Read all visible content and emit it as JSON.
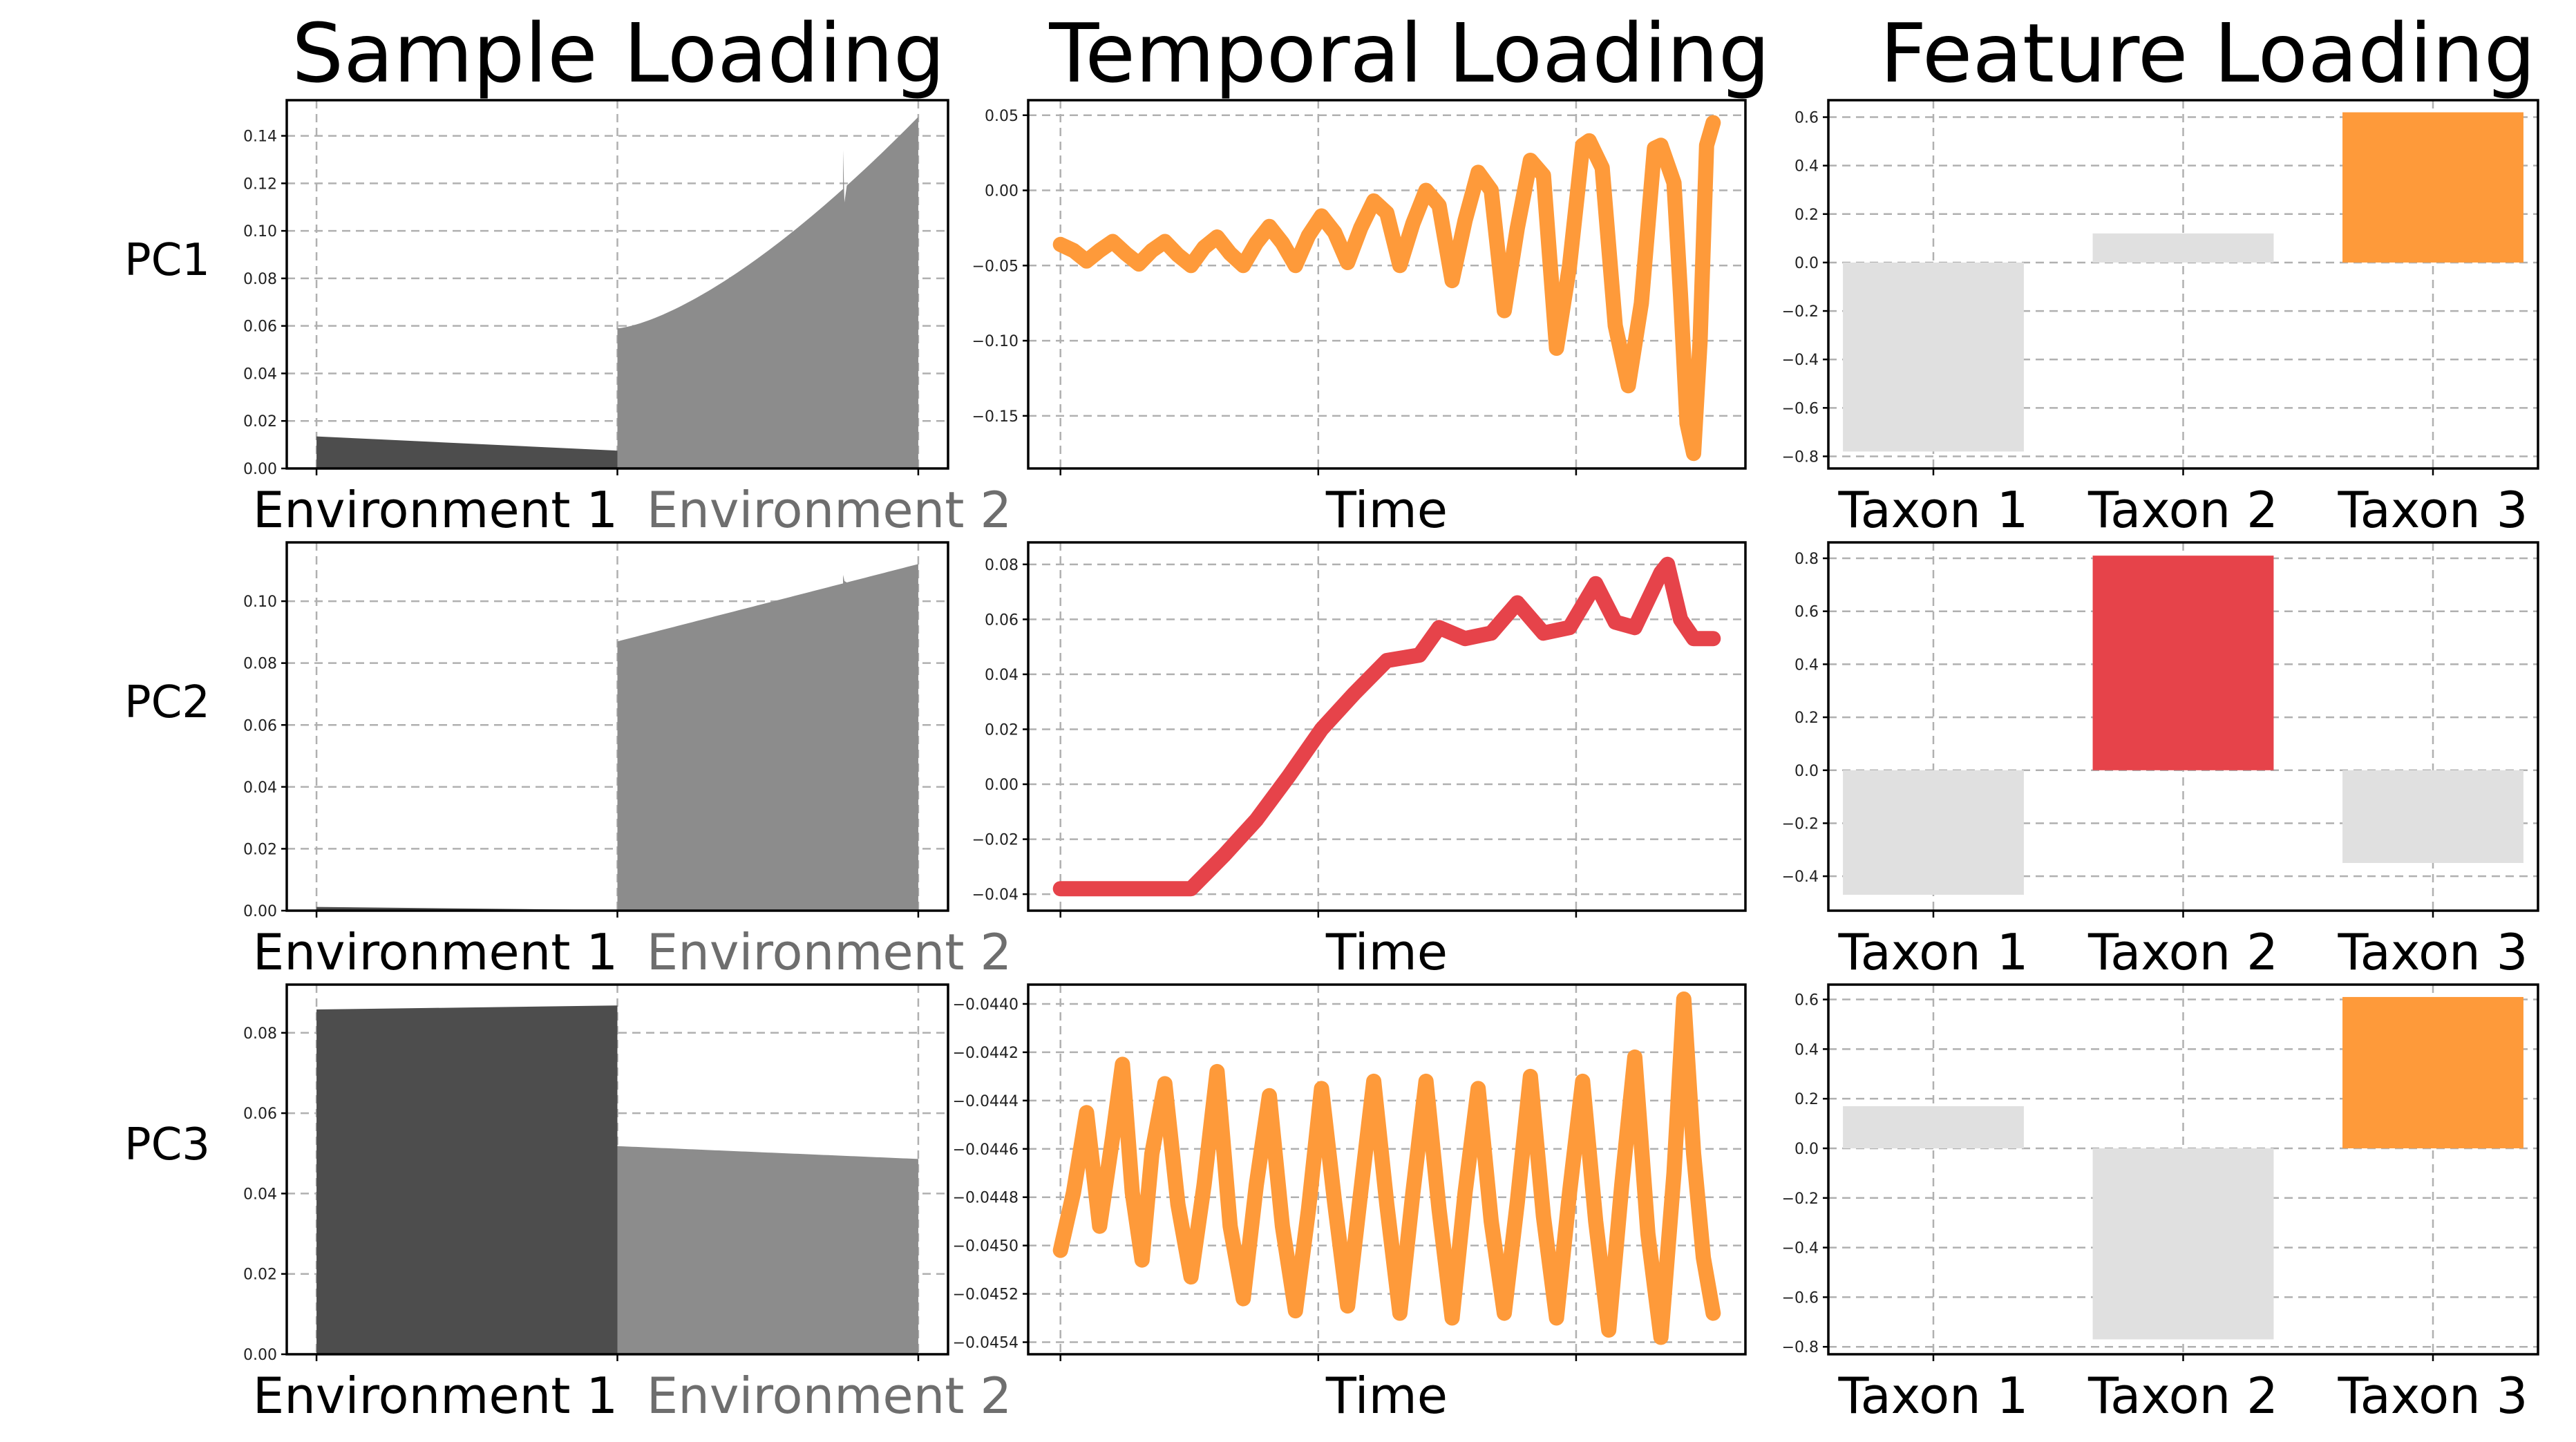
{
  "titles": {
    "sample": "Sample Loading",
    "temporal": "Temporal Loading",
    "feature": "Feature Loading"
  },
  "row_labels": [
    "PC1",
    "PC2",
    "PC3"
  ],
  "colors": {
    "env1": "#4d4d4d",
    "env2": "#8c8c8c",
    "env2_label": "#6e6e6e",
    "orange": "#fe9a3a",
    "red": "#e6434a",
    "gray_bar": "#e0e0e0"
  },
  "chart_data": [
    {
      "id": "pc1-sample",
      "type": "bar",
      "row": 0,
      "col": 0,
      "categories": [
        "Environment 1",
        "Environment 2"
      ],
      "yticks": [
        "0.00",
        "0.02",
        "0.04",
        "0.06",
        "0.08",
        "0.10",
        "0.12",
        "0.14"
      ],
      "ylim": [
        0,
        0.155
      ],
      "env1": {
        "start": 0.0135,
        "end": 0.0075
      },
      "env2": {
        "start": 0.059,
        "end": 0.148,
        "shape": "convex",
        "notch_at": 0.75,
        "notch_peak": 0.134,
        "notch_drop": 0.112
      }
    },
    {
      "id": "pc1-temporal",
      "type": "line",
      "row": 0,
      "col": 1,
      "xlabel": "Time",
      "yticks": [
        "0.05",
        "0.00",
        "−0.05",
        "−0.10",
        "−0.15"
      ],
      "ylim": [
        -0.185,
        0.06
      ],
      "color": "orange",
      "points": [
        [
          0,
          -0.036
        ],
        [
          0.02,
          -0.04
        ],
        [
          0.04,
          -0.047
        ],
        [
          0.06,
          -0.04
        ],
        [
          0.08,
          -0.034
        ],
        [
          0.1,
          -0.042
        ],
        [
          0.12,
          -0.049
        ],
        [
          0.14,
          -0.04
        ],
        [
          0.16,
          -0.034
        ],
        [
          0.18,
          -0.043
        ],
        [
          0.2,
          -0.05
        ],
        [
          0.22,
          -0.038
        ],
        [
          0.24,
          -0.031
        ],
        [
          0.26,
          -0.042
        ],
        [
          0.28,
          -0.05
        ],
        [
          0.3,
          -0.035
        ],
        [
          0.32,
          -0.024
        ],
        [
          0.34,
          -0.035
        ],
        [
          0.36,
          -0.05
        ],
        [
          0.38,
          -0.03
        ],
        [
          0.4,
          -0.017
        ],
        [
          0.42,
          -0.028
        ],
        [
          0.44,
          -0.048
        ],
        [
          0.46,
          -0.025
        ],
        [
          0.48,
          -0.007
        ],
        [
          0.5,
          -0.015
        ],
        [
          0.52,
          -0.05
        ],
        [
          0.54,
          -0.022
        ],
        [
          0.56,
          -0.0
        ],
        [
          0.58,
          -0.01
        ],
        [
          0.6,
          -0.06
        ],
        [
          0.62,
          -0.02
        ],
        [
          0.64,
          0.012
        ],
        [
          0.66,
          -0.0
        ],
        [
          0.68,
          -0.08
        ],
        [
          0.7,
          -0.025
        ],
        [
          0.72,
          0.02
        ],
        [
          0.74,
          0.01
        ],
        [
          0.76,
          -0.105
        ],
        [
          0.78,
          -0.05
        ],
        [
          0.8,
          0.03
        ],
        [
          0.81,
          0.033
        ],
        [
          0.83,
          0.015
        ],
        [
          0.85,
          -0.09
        ],
        [
          0.87,
          -0.13
        ],
        [
          0.89,
          -0.075
        ],
        [
          0.91,
          0.028
        ],
        [
          0.92,
          0.03
        ],
        [
          0.94,
          0.005
        ],
        [
          0.95,
          -0.07
        ],
        [
          0.96,
          -0.155
        ],
        [
          0.97,
          -0.175
        ],
        [
          0.98,
          -0.1
        ],
        [
          0.99,
          0.03
        ],
        [
          1.0,
          0.045
        ]
      ]
    },
    {
      "id": "pc1-feature",
      "type": "bar",
      "row": 0,
      "col": 2,
      "categories": [
        "Taxon 1",
        "Taxon 2",
        "Taxon 3"
      ],
      "values": [
        -0.78,
        0.12,
        0.62
      ],
      "colors": [
        "gray_bar",
        "gray_bar",
        "orange"
      ],
      "yticks": [
        "0.6",
        "0.4",
        "0.2",
        "0.0",
        "−0.2",
        "−0.4",
        "−0.6",
        "−0.8"
      ],
      "ylim": [
        -0.85,
        0.67
      ]
    },
    {
      "id": "pc2-sample",
      "type": "bar",
      "row": 1,
      "col": 0,
      "categories": [
        "Environment 1",
        "Environment 2"
      ],
      "yticks": [
        "0.00",
        "0.02",
        "0.04",
        "0.06",
        "0.08",
        "0.10"
      ],
      "ylim": [
        0,
        0.119
      ],
      "env1": {
        "start": 0.0012,
        "end": 0.0002
      },
      "env2": {
        "start": 0.087,
        "end": 0.112,
        "shape": "linear",
        "notch_at": 0.75,
        "notch_peak": 0.1085,
        "notch_drop": 0.1065
      }
    },
    {
      "id": "pc2-temporal",
      "type": "line",
      "row": 1,
      "col": 1,
      "xlabel": "Time",
      "yticks": [
        "0.08",
        "0.06",
        "0.04",
        "0.02",
        "0.00",
        "−0.02",
        "−0.04"
      ],
      "ylim": [
        -0.046,
        0.088
      ],
      "color": "red",
      "points": [
        [
          0,
          -0.038
        ],
        [
          0.05,
          -0.038
        ],
        [
          0.1,
          -0.038
        ],
        [
          0.15,
          -0.038
        ],
        [
          0.2,
          -0.038
        ],
        [
          0.25,
          -0.026
        ],
        [
          0.3,
          -0.013
        ],
        [
          0.35,
          0.003
        ],
        [
          0.4,
          0.02
        ],
        [
          0.45,
          0.033
        ],
        [
          0.5,
          0.045
        ],
        [
          0.55,
          0.047
        ],
        [
          0.58,
          0.057
        ],
        [
          0.62,
          0.053
        ],
        [
          0.66,
          0.055
        ],
        [
          0.7,
          0.066
        ],
        [
          0.74,
          0.055
        ],
        [
          0.78,
          0.057
        ],
        [
          0.82,
          0.073
        ],
        [
          0.85,
          0.059
        ],
        [
          0.88,
          0.057
        ],
        [
          0.92,
          0.077
        ],
        [
          0.93,
          0.08
        ],
        [
          0.95,
          0.06
        ],
        [
          0.97,
          0.053
        ],
        [
          1.0,
          0.053
        ]
      ]
    },
    {
      "id": "pc2-feature",
      "type": "bar",
      "row": 1,
      "col": 2,
      "categories": [
        "Taxon 1",
        "Taxon 2",
        "Taxon 3"
      ],
      "values": [
        -0.47,
        0.81,
        -0.35
      ],
      "colors": [
        "gray_bar",
        "red",
        "gray_bar"
      ],
      "yticks": [
        "0.8",
        "0.6",
        "0.4",
        "0.2",
        "0.0",
        "−0.2",
        "−0.4"
      ],
      "ylim": [
        -0.53,
        0.86
      ]
    },
    {
      "id": "pc3-sample",
      "type": "bar",
      "row": 2,
      "col": 0,
      "categories": [
        "Environment 1",
        "Environment 2"
      ],
      "yticks": [
        "0.00",
        "0.02",
        "0.04",
        "0.06",
        "0.08"
      ],
      "ylim": [
        0,
        0.092
      ],
      "env1": {
        "start": 0.0858,
        "end": 0.0868
      },
      "env2": {
        "start": 0.0518,
        "end": 0.0486,
        "shape": "linear"
      }
    },
    {
      "id": "pc3-temporal",
      "type": "line",
      "row": 2,
      "col": 1,
      "xlabel": "Time",
      "yticks": [
        "−0.0440",
        "−0.0442",
        "−0.0444",
        "−0.0446",
        "−0.0448",
        "−0.0450",
        "−0.0452",
        "−0.0454"
      ],
      "ylim": [
        -0.04545,
        -0.04392
      ],
      "color": "orange",
      "points": [
        [
          0,
          -0.04502
        ],
        [
          0.02,
          -0.04478
        ],
        [
          0.04,
          -0.04445
        ],
        [
          0.06,
          -0.04492
        ],
        [
          0.08,
          -0.04455
        ],
        [
          0.095,
          -0.04425
        ],
        [
          0.11,
          -0.04478
        ],
        [
          0.125,
          -0.04506
        ],
        [
          0.14,
          -0.04462
        ],
        [
          0.16,
          -0.04433
        ],
        [
          0.18,
          -0.04483
        ],
        [
          0.2,
          -0.04513
        ],
        [
          0.22,
          -0.04475
        ],
        [
          0.24,
          -0.04428
        ],
        [
          0.26,
          -0.04492
        ],
        [
          0.28,
          -0.04522
        ],
        [
          0.3,
          -0.04475
        ],
        [
          0.32,
          -0.04438
        ],
        [
          0.34,
          -0.04492
        ],
        [
          0.36,
          -0.04527
        ],
        [
          0.38,
          -0.04485
        ],
        [
          0.4,
          -0.04435
        ],
        [
          0.42,
          -0.04482
        ],
        [
          0.44,
          -0.04525
        ],
        [
          0.46,
          -0.04478
        ],
        [
          0.48,
          -0.04432
        ],
        [
          0.5,
          -0.04483
        ],
        [
          0.52,
          -0.04528
        ],
        [
          0.54,
          -0.04478
        ],
        [
          0.56,
          -0.04432
        ],
        [
          0.58,
          -0.04485
        ],
        [
          0.6,
          -0.0453
        ],
        [
          0.62,
          -0.04478
        ],
        [
          0.64,
          -0.04435
        ],
        [
          0.66,
          -0.0449
        ],
        [
          0.68,
          -0.04528
        ],
        [
          0.7,
          -0.04482
        ],
        [
          0.72,
          -0.0443
        ],
        [
          0.74,
          -0.04488
        ],
        [
          0.76,
          -0.0453
        ],
        [
          0.78,
          -0.04478
        ],
        [
          0.8,
          -0.04432
        ],
        [
          0.82,
          -0.0449
        ],
        [
          0.84,
          -0.04535
        ],
        [
          0.86,
          -0.04475
        ],
        [
          0.88,
          -0.04422
        ],
        [
          0.9,
          -0.04495
        ],
        [
          0.92,
          -0.04538
        ],
        [
          0.94,
          -0.0447
        ],
        [
          0.955,
          -0.04398
        ],
        [
          0.97,
          -0.04462
        ],
        [
          0.985,
          -0.04505
        ],
        [
          1.0,
          -0.04528
        ]
      ]
    },
    {
      "id": "pc3-feature",
      "type": "bar",
      "row": 2,
      "col": 2,
      "categories": [
        "Taxon 1",
        "Taxon 2",
        "Taxon 3"
      ],
      "values": [
        0.17,
        -0.77,
        0.61
      ],
      "colors": [
        "gray_bar",
        "gray_bar",
        "orange"
      ],
      "yticks": [
        "0.6",
        "0.4",
        "0.2",
        "0.0",
        "−0.2",
        "−0.4",
        "−0.6",
        "−0.8"
      ],
      "ylim": [
        -0.83,
        0.66
      ]
    }
  ]
}
